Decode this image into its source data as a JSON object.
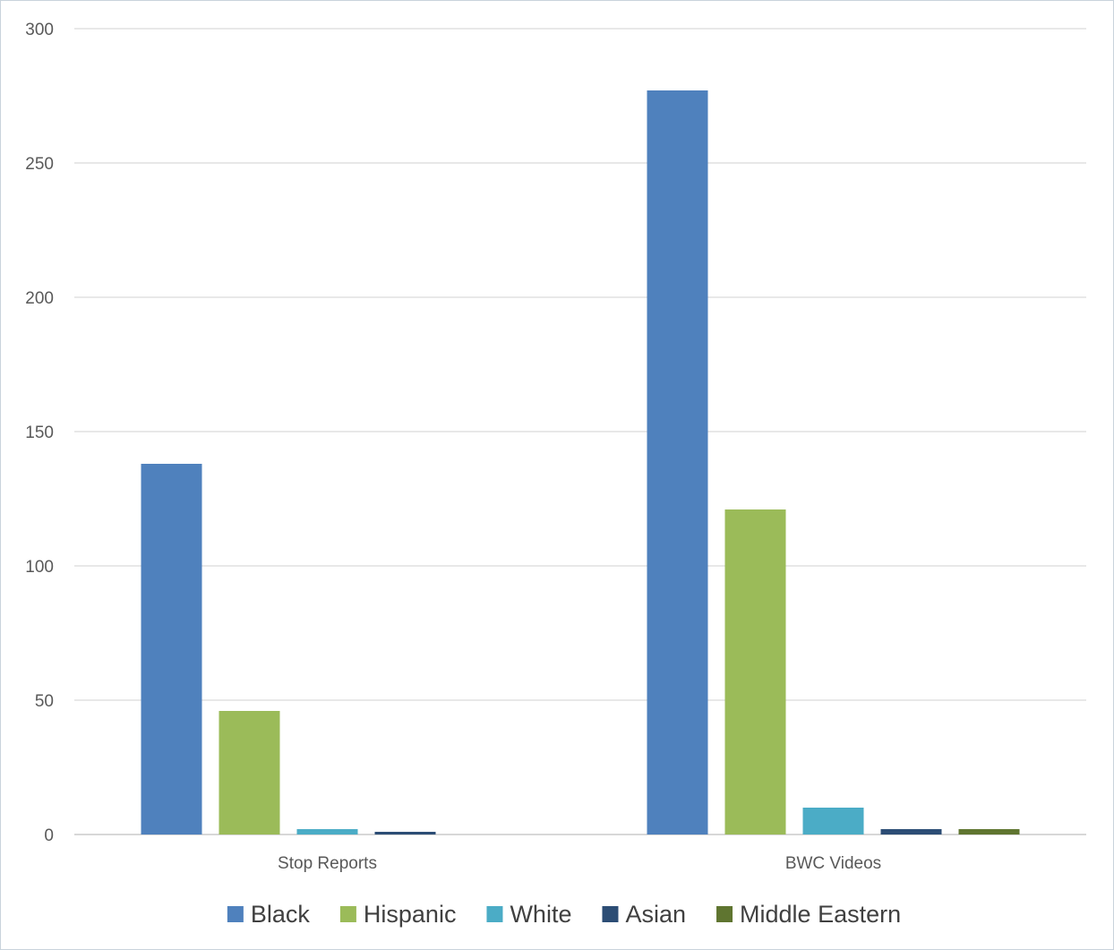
{
  "chart_data": {
    "type": "bar",
    "categories": [
      "Stop Reports",
      "BWC Videos"
    ],
    "series": [
      {
        "name": "Black",
        "color": "#4f81bd",
        "values": [
          138,
          277
        ]
      },
      {
        "name": "Hispanic",
        "color": "#9bbb59",
        "values": [
          46,
          121
        ]
      },
      {
        "name": "White",
        "color": "#4bacc6",
        "values": [
          2,
          10
        ]
      },
      {
        "name": "Asian",
        "color": "#2c4d75",
        "values": [
          1,
          2
        ]
      },
      {
        "name": "Middle Eastern",
        "color": "#5f7530",
        "values": [
          0,
          2
        ]
      }
    ],
    "yticks": [
      "0",
      "50",
      "100",
      "150",
      "200",
      "250",
      "300"
    ],
    "ylim": [
      0,
      300
    ],
    "grid": true,
    "legend_position": "bottom"
  }
}
